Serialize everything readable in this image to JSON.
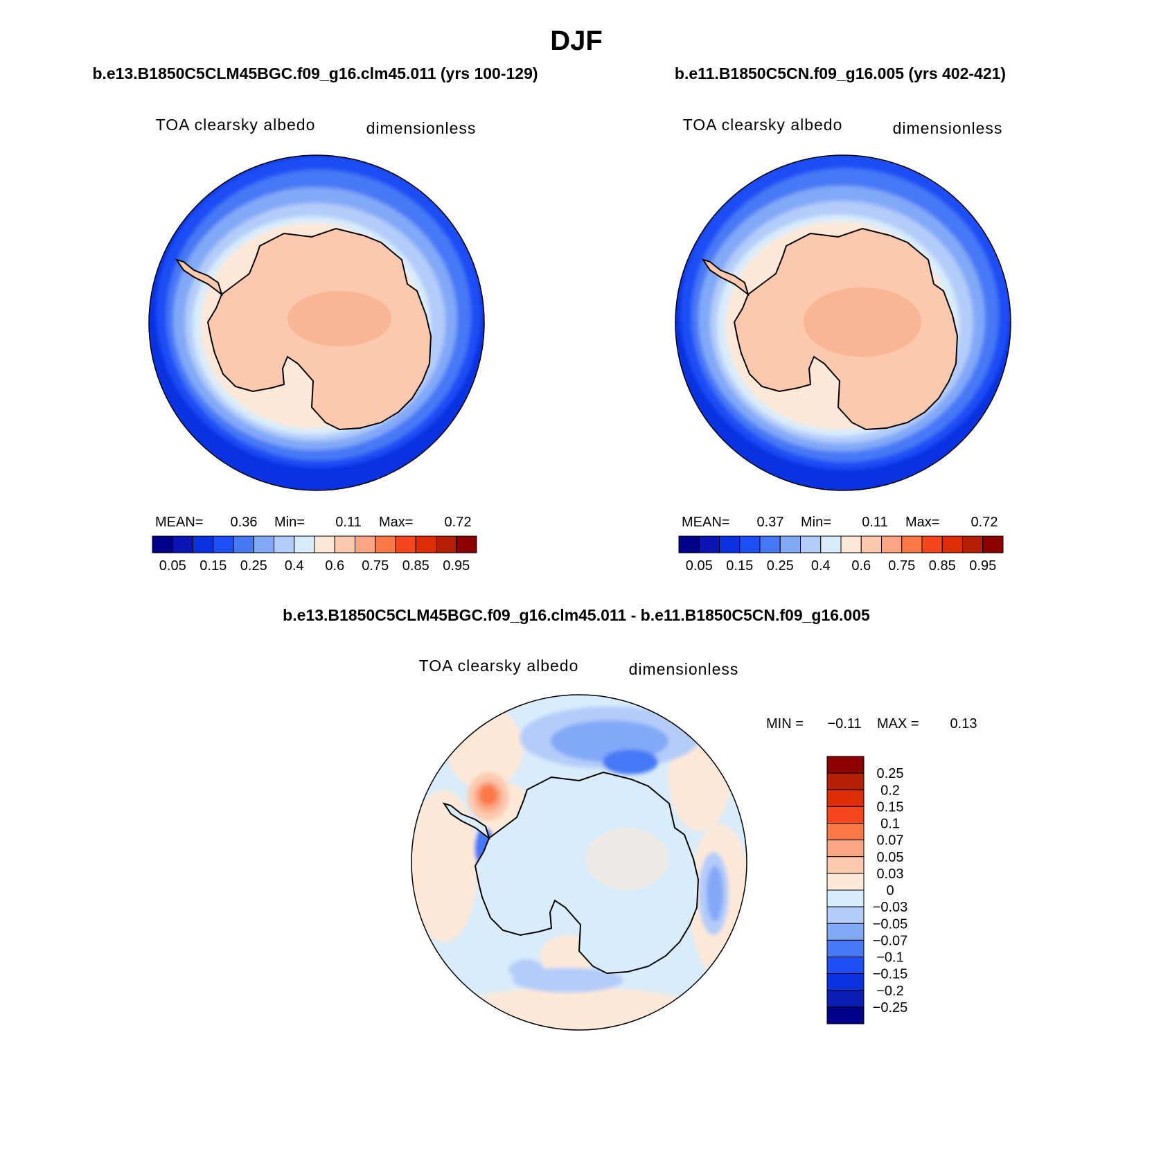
{
  "figure": {
    "season_title": "DJF",
    "subtitle_diff": "b.e13.B1850C5CLM45BGC.f09_g16.clm45.011 - b.e11.B1850C5CN.f09_g16.005"
  },
  "colors": {
    "land_blue": "#0a32e0",
    "ice_peach": "#fdc9ae",
    "ice_core": "#f9b291",
    "diff_bg": "#d8ecfb",
    "coast": "#000000",
    "levels_abs": [
      "#00008c",
      "#0a14b4",
      "#0a32e0",
      "#1e4ef5",
      "#4678f5",
      "#82a8f8",
      "#b4ccfa",
      "#d8ecfb",
      "#fee9d8",
      "#fdc9ae",
      "#fba582",
      "#fb7846",
      "#f5461e",
      "#dc2d05",
      "#b41e05",
      "#8c0000"
    ],
    "levels_diff": [
      "#00008c",
      "#0a1eb4",
      "#0a32e0",
      "#1e4ef5",
      "#4678f5",
      "#82a8f8",
      "#b4ccfa",
      "#d8ecfb",
      "#fee9d8",
      "#fdc9ae",
      "#fba582",
      "#fb7846",
      "#f5461e",
      "#dc2d05",
      "#b41e05",
      "#8c0000"
    ]
  },
  "chart_data": [
    {
      "type": "heatmap",
      "projection": "south-polar-stereographic",
      "title": "b.e13.B1850C5CLM45BGC.f09_g16.clm45.011 (yrs 100-129)",
      "variable": "TOA clearsky albedo",
      "units": "dimensionless",
      "stats": {
        "mean_label": "MEAN=",
        "mean": "0.36",
        "min_label": "Min=",
        "min": "0.11",
        "max_label": "Max=",
        "max": "0.72"
      },
      "colorbar_ticks": [
        "0.05",
        "0.15",
        "0.25",
        "0.4",
        "0.6",
        "0.75",
        "0.85",
        "0.95"
      ],
      "colorbar_orientation": "horizontal"
    },
    {
      "type": "heatmap",
      "projection": "south-polar-stereographic",
      "title": "b.e11.B1850C5CN.f09_g16.005 (yrs 402-421)",
      "variable": "TOA clearsky albedo",
      "units": "dimensionless",
      "stats": {
        "mean_label": "MEAN=",
        "mean": "0.37",
        "min_label": "Min=",
        "min": "0.11",
        "max_label": "Max=",
        "max": "0.72"
      },
      "colorbar_ticks": [
        "0.05",
        "0.15",
        "0.25",
        "0.4",
        "0.6",
        "0.75",
        "0.85",
        "0.95"
      ],
      "colorbar_orientation": "horizontal"
    },
    {
      "type": "heatmap",
      "projection": "south-polar-stereographic",
      "title": "b.e13.B1850C5CLM45BGC.f09_g16.clm45.011 - b.e11.B1850C5CN.f09_g16.005",
      "variable": "TOA clearsky albedo",
      "units": "dimensionless",
      "stats": {
        "min_label": "MIN =",
        "min": "−0.11",
        "max_label": "MAX =",
        "max": "0.13"
      },
      "colorbar_ticks": [
        "0.25",
        "0.2",
        "0.15",
        "0.1",
        "0.07",
        "0.05",
        "0.03",
        "0",
        "−0.03",
        "−0.05",
        "−0.07",
        "−0.1",
        "−0.15",
        "−0.2",
        "−0.25"
      ],
      "colorbar_orientation": "vertical"
    }
  ]
}
